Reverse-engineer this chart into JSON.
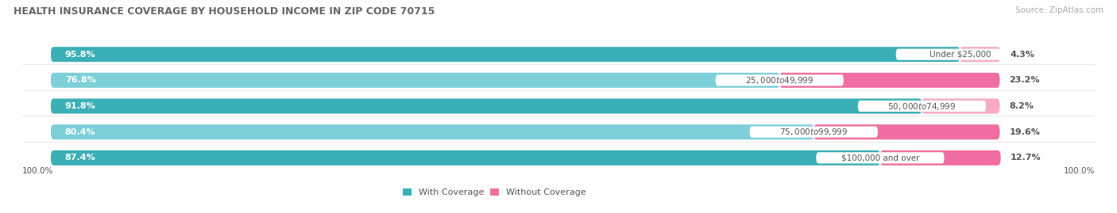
{
  "title": "HEALTH INSURANCE COVERAGE BY HOUSEHOLD INCOME IN ZIP CODE 70715",
  "source": "Source: ZipAtlas.com",
  "categories": [
    "Under $25,000",
    "$25,000 to $49,999",
    "$50,000 to $74,999",
    "$75,000 to $99,999",
    "$100,000 and over"
  ],
  "with_coverage": [
    95.8,
    76.8,
    91.8,
    80.4,
    87.4
  ],
  "without_coverage": [
    4.3,
    23.2,
    8.2,
    19.6,
    12.7
  ],
  "color_coverage_dark": "#3aafb5",
  "color_coverage_light": "#7dd0d8",
  "color_no_coverage_dark": "#f06ea0",
  "color_no_coverage_light": "#f7aac6",
  "bar_bg_color": "#e8e8ee",
  "figsize": [
    14.06,
    2.69
  ],
  "dpi": 100,
  "title_fontsize": 9.0,
  "label_fontsize": 8.0,
  "cat_label_fontsize": 7.5,
  "legend_fontsize": 8.0,
  "axis_label_fontsize": 7.5,
  "title_color": "#666666",
  "source_color": "#aaaaaa",
  "text_color_on_bar": "#ffffff",
  "category_label_color": "#555555",
  "pct_label_color_right": "#555555"
}
